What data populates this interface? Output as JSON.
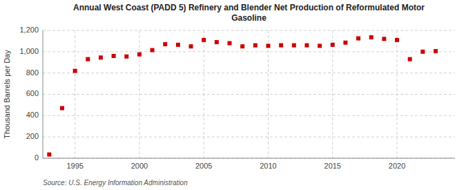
{
  "chart_data": {
    "type": "scatter",
    "title": "Annual West Coast (PADD 5) Refinery and Blender Net Production of Reformulated Motor\nGasoline",
    "ylabel": "Thousand Barrels per Day",
    "source": "Source: U.S. Energy Information Administration",
    "x": [
      1993,
      1994,
      1995,
      1996,
      1997,
      1998,
      1999,
      2000,
      2001,
      2002,
      2003,
      2004,
      2005,
      2006,
      2007,
      2008,
      2009,
      2010,
      2011,
      2012,
      2013,
      2014,
      2015,
      2016,
      2017,
      2018,
      2019,
      2020,
      2021,
      2022,
      2023
    ],
    "values": [
      35,
      470,
      820,
      930,
      945,
      960,
      955,
      975,
      1015,
      1070,
      1065,
      1050,
      1110,
      1090,
      1080,
      1050,
      1060,
      1055,
      1060,
      1060,
      1060,
      1055,
      1065,
      1085,
      1125,
      1135,
      1120,
      1110,
      930,
      1000,
      1005
    ],
    "color": "#cc0000",
    "marker": "square",
    "xlim": [
      1992.5,
      2024.5
    ],
    "ylim": [
      0,
      1200
    ],
    "xticks": [
      1995,
      2000,
      2005,
      2010,
      2015,
      2020
    ],
    "yticks": [
      0,
      200,
      400,
      600,
      800,
      {
        "value": 1000,
        "label": "1,000"
      },
      {
        "value": 1200,
        "label": "1,200"
      }
    ],
    "grid": true
  }
}
